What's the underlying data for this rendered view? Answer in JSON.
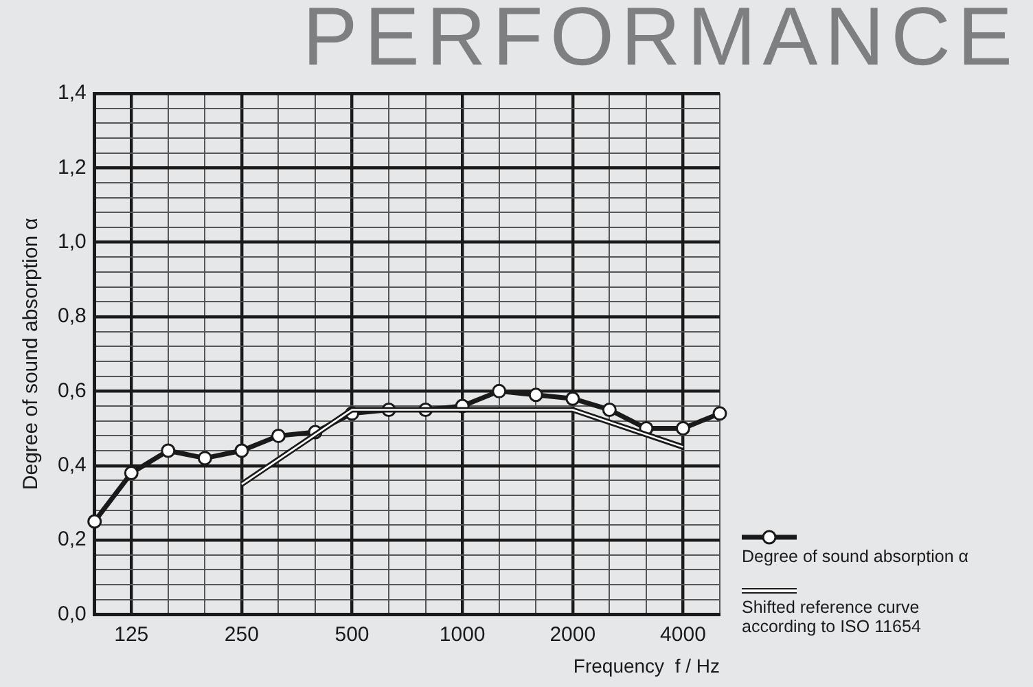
{
  "chart_data": {
    "type": "line",
    "title": "PERFORMANCE",
    "xlabel": "Frequency  f / Hz",
    "ylabel": "Degree of sound absorption α",
    "categories": [
      null,
      "125",
      null,
      null,
      "250",
      null,
      null,
      "500",
      null,
      null,
      "1000",
      null,
      null,
      "2000",
      null,
      null,
      "4000",
      null
    ],
    "series": [
      {
        "name": "Shifted reference curve according to ISO 11654",
        "color": "#1a1a1a",
        "line_style": "solid",
        "marker": "none",
        "values": [
          null,
          null,
          null,
          null,
          0.35,
          null,
          null,
          0.55,
          null,
          null,
          0.55,
          null,
          null,
          0.55,
          null,
          null,
          0.45,
          null
        ]
      },
      {
        "name": "Degree of sound absorption α",
        "color": "#1a1a1a",
        "marker": "circle",
        "values": [
          0.25,
          0.38,
          0.44,
          0.42,
          0.44,
          0.48,
          0.49,
          0.54,
          0.55,
          0.55,
          0.56,
          0.6,
          0.59,
          0.58,
          0.55,
          0.5,
          0.5,
          0.54
        ]
      }
    ],
    "ylim": [
      0,
      1.4
    ],
    "yticks": [
      {
        "value": 0,
        "label": "0,0"
      },
      {
        "value": 0.04,
        "label": null
      },
      {
        "value": 0.08,
        "label": null
      },
      {
        "value": 0.12,
        "label": null
      },
      {
        "value": 0.16,
        "label": null
      },
      {
        "value": 0.2,
        "label": "0,2"
      },
      {
        "value": 0.24,
        "label": null
      },
      {
        "value": 0.28,
        "label": null
      },
      {
        "value": 0.32,
        "label": null
      },
      {
        "value": 0.36,
        "label": null
      },
      {
        "value": 0.4,
        "label": "0,4"
      },
      {
        "value": 0.44,
        "label": null
      },
      {
        "value": 0.48,
        "label": null
      },
      {
        "value": 0.52,
        "label": null
      },
      {
        "value": 0.56,
        "label": null
      },
      {
        "value": 0.6,
        "label": "0,6"
      },
      {
        "value": 0.64,
        "label": null
      },
      {
        "value": 0.68,
        "label": null
      },
      {
        "value": 0.72,
        "label": null
      },
      {
        "value": 0.76,
        "label": null
      },
      {
        "value": 0.8,
        "label": "0,8"
      },
      {
        "value": 0.84,
        "label": null
      },
      {
        "value": 0.88,
        "label": null
      },
      {
        "value": 0.92,
        "label": null
      },
      {
        "value": 0.96,
        "label": null
      },
      {
        "value": 1.0,
        "label": "1,0"
      },
      {
        "value": 1.04,
        "label": null
      },
      {
        "value": 1.08,
        "label": null
      },
      {
        "value": 1.12,
        "label": null
      },
      {
        "value": 1.16,
        "label": null
      },
      {
        "value": 1.2,
        "label": "1,2"
      },
      {
        "value": 1.24,
        "label": null
      },
      {
        "value": 1.28,
        "label": null
      },
      {
        "value": 1.32,
        "label": null
      },
      {
        "value": 1.36,
        "label": null
      },
      {
        "value": 1.4,
        "label": "1,4"
      }
    ],
    "grid": true,
    "legend": "bottom right"
  }
}
